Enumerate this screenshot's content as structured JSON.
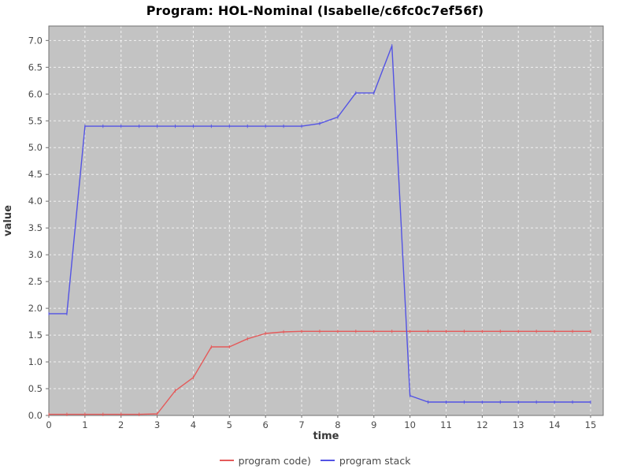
{
  "chart_data": {
    "type": "line",
    "title": "Program: HOL-Nominal (Isabelle/c6fc0c7ef56f)",
    "xlabel": "time",
    "ylabel": "value",
    "xlim": [
      0,
      15.35
    ],
    "ylim": [
      0,
      7.27
    ],
    "x_tick_labels": [
      "0",
      "1",
      "2",
      "3",
      "4",
      "5",
      "6",
      "7",
      "8",
      "9",
      "10",
      "11",
      "12",
      "13",
      "14",
      "15"
    ],
    "y_tick_labels": [
      "0.0",
      "0.5",
      "1.0",
      "1.5",
      "2.0",
      "2.5",
      "3.0",
      "3.5",
      "4.0",
      "4.5",
      "5.0",
      "5.5",
      "6.0",
      "6.5",
      "7.0"
    ],
    "grid": true,
    "legend_position": "bottom-center",
    "plot_bg": "#c3c3c3",
    "grid_color": "#f2f2f2",
    "border_color": "#717171",
    "tick_label_color": "#4a4a4a",
    "axis_label_color": "#383838",
    "series": [
      {
        "name": "program code)",
        "color": "#e45a5a",
        "points": [
          [
            0,
            0.02
          ],
          [
            0.5,
            0.02
          ],
          [
            1,
            0.02
          ],
          [
            1.5,
            0.02
          ],
          [
            2,
            0.02
          ],
          [
            2.5,
            0.02
          ],
          [
            3,
            0.03
          ],
          [
            3.5,
            0.46
          ],
          [
            4,
            0.71
          ],
          [
            4.5,
            1.28
          ],
          [
            5,
            1.28
          ],
          [
            5.5,
            1.43
          ],
          [
            6,
            1.53
          ],
          [
            6.5,
            1.56
          ],
          [
            7,
            1.57
          ],
          [
            7.5,
            1.57
          ],
          [
            8,
            1.57
          ],
          [
            8.5,
            1.57
          ],
          [
            9,
            1.57
          ],
          [
            9.5,
            1.57
          ],
          [
            10,
            1.57
          ],
          [
            10.5,
            1.57
          ],
          [
            11,
            1.57
          ],
          [
            11.5,
            1.57
          ],
          [
            12,
            1.57
          ],
          [
            12.5,
            1.57
          ],
          [
            13,
            1.57
          ],
          [
            13.5,
            1.57
          ],
          [
            14,
            1.57
          ],
          [
            14.5,
            1.57
          ],
          [
            15,
            1.57
          ]
        ]
      },
      {
        "name": "program stack",
        "color": "#5353e4",
        "points": [
          [
            0,
            1.9
          ],
          [
            0.5,
            1.9
          ],
          [
            1,
            5.4
          ],
          [
            1.5,
            5.4
          ],
          [
            2,
            5.4
          ],
          [
            2.5,
            5.4
          ],
          [
            3,
            5.4
          ],
          [
            3.5,
            5.4
          ],
          [
            4,
            5.4
          ],
          [
            4.5,
            5.4
          ],
          [
            5,
            5.4
          ],
          [
            5.5,
            5.4
          ],
          [
            6,
            5.4
          ],
          [
            6.5,
            5.4
          ],
          [
            7,
            5.4
          ],
          [
            7.5,
            5.45
          ],
          [
            8,
            5.57
          ],
          [
            8.5,
            6.02
          ],
          [
            9,
            6.02
          ],
          [
            9.5,
            6.9
          ],
          [
            10,
            0.37
          ],
          [
            10.5,
            0.25
          ],
          [
            11,
            0.25
          ],
          [
            11.5,
            0.25
          ],
          [
            12,
            0.25
          ],
          [
            12.5,
            0.25
          ],
          [
            13,
            0.25
          ],
          [
            13.5,
            0.25
          ],
          [
            14,
            0.25
          ],
          [
            14.5,
            0.25
          ],
          [
            15,
            0.25
          ]
        ]
      }
    ]
  }
}
